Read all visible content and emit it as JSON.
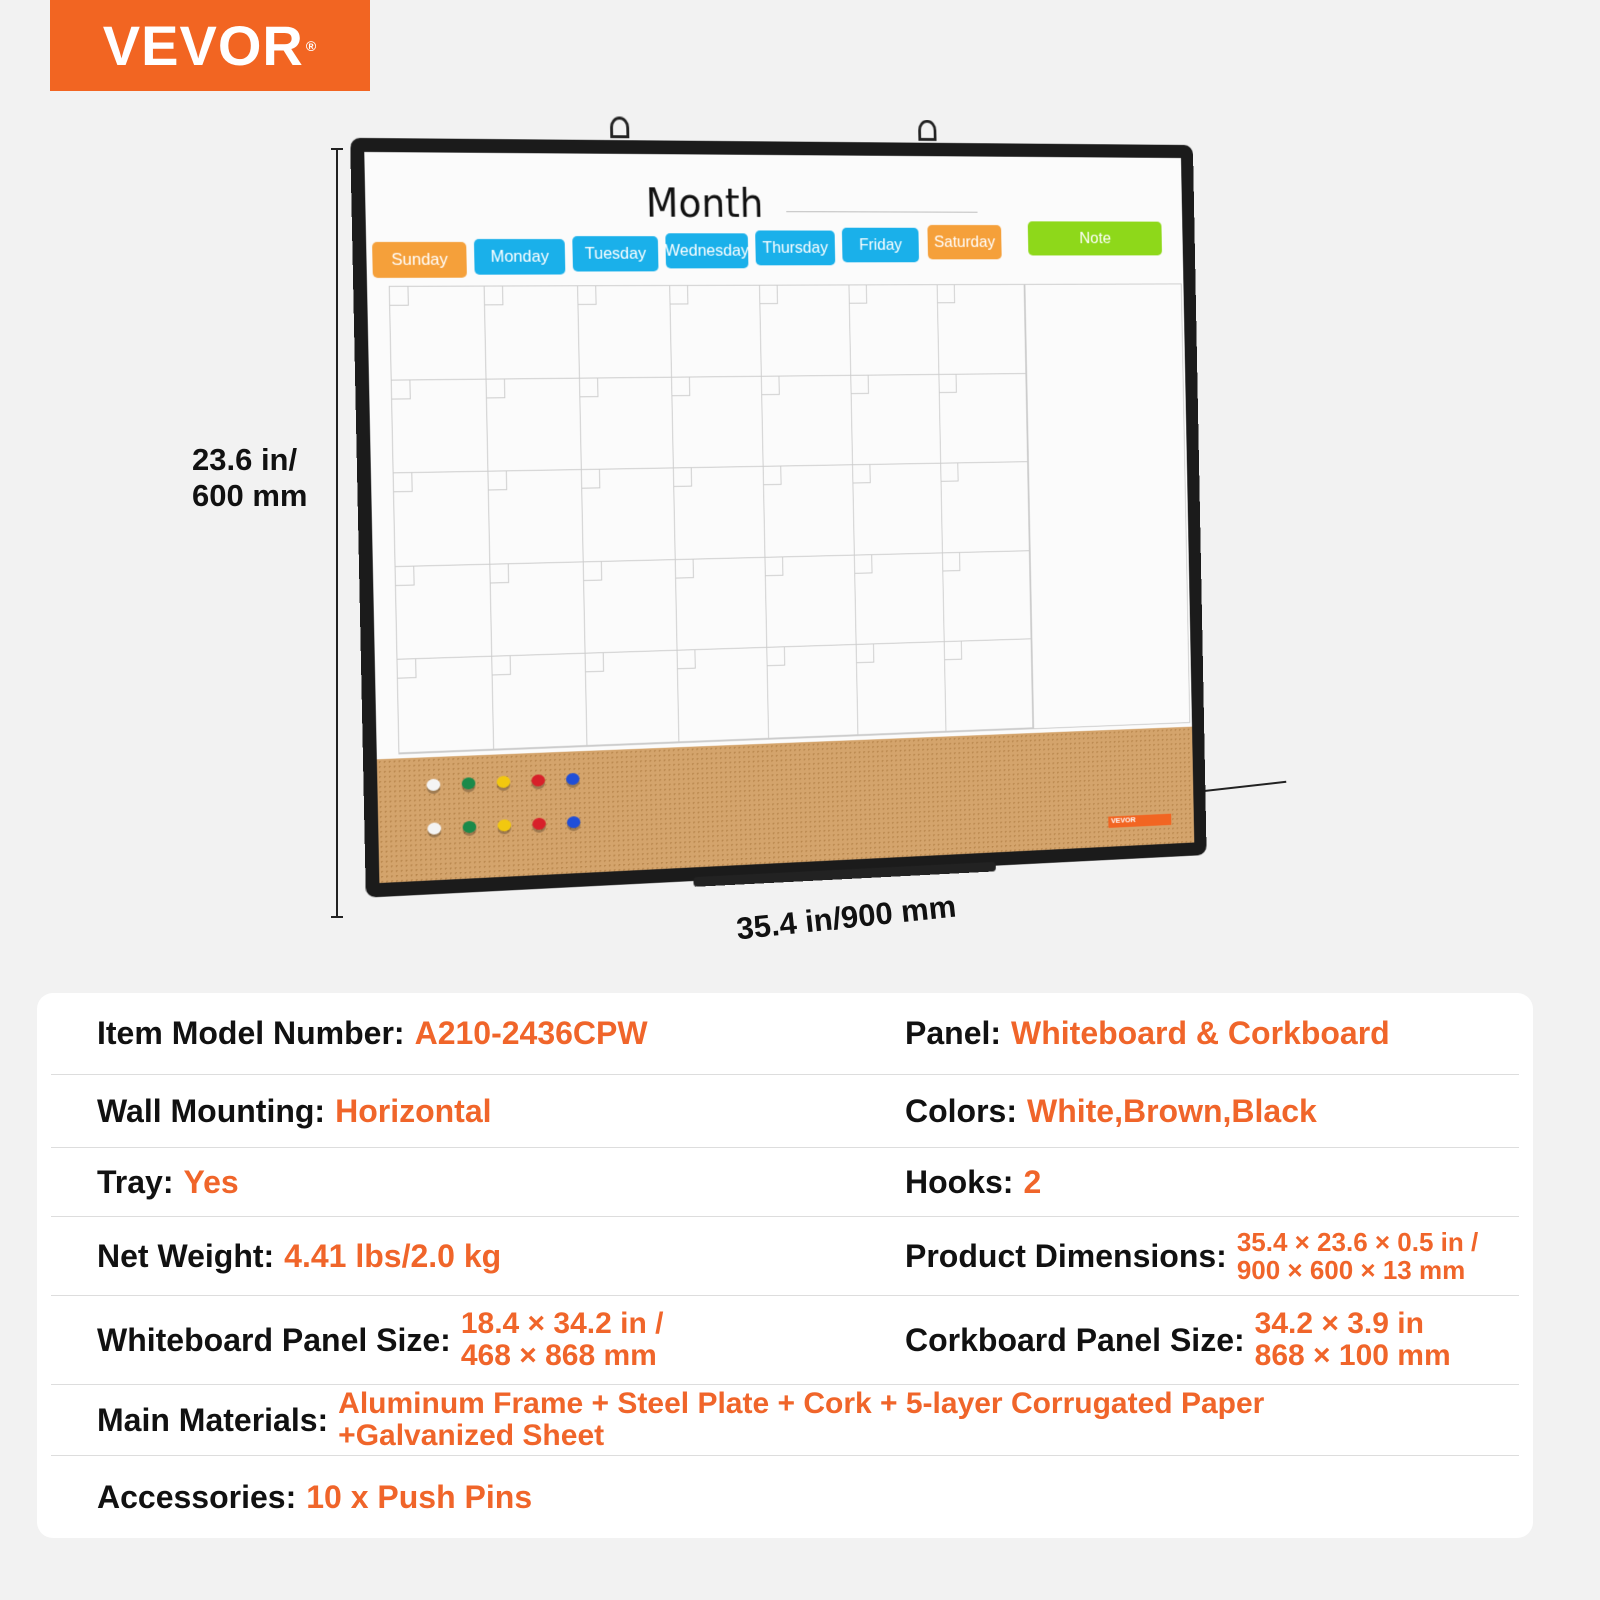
{
  "brand": {
    "logo_text": "VEVOR",
    "accent": "#f26522",
    "value_color": "#f0652a"
  },
  "dimensions": {
    "height_label_line1": "23.6 in/",
    "height_label_line2": "600 mm",
    "width_label": "35.4 in/900 mm"
  },
  "board": {
    "title": "Month",
    "days": [
      {
        "label": "Sunday",
        "color": "#f5a03a"
      },
      {
        "label": "Monday",
        "color": "#1ab0ea"
      },
      {
        "label": "Tuesday",
        "color": "#1ab0ea"
      },
      {
        "label": "Wednesday",
        "color": "#1ab0ea"
      },
      {
        "label": "Thursday",
        "color": "#1ab0ea"
      },
      {
        "label": "Friday",
        "color": "#1ab0ea"
      },
      {
        "label": "Saturday",
        "color": "#f5a03a"
      }
    ],
    "note": {
      "label": "Note",
      "color": "#8ed81a"
    },
    "cork_logo": "VEVOR",
    "pin_colors": [
      "#f4f4f4",
      "#1a8a4a",
      "#f2c80f",
      "#d8202a",
      "#1f4ed8"
    ]
  },
  "specs": [
    [
      {
        "label": "Item Model Number:",
        "value": "A210-2436CPW"
      },
      {
        "label": "Panel:",
        "value": "Whiteboard & Corkboard"
      }
    ],
    [
      {
        "label": "Wall Mounting:",
        "value": "Horizontal"
      },
      {
        "label": "Colors:",
        "value": "White,Brown,Black"
      }
    ],
    [
      {
        "label": "Tray:",
        "value": "Yes"
      },
      {
        "label": "Hooks:",
        "value": "2"
      }
    ],
    [
      {
        "label": "Net Weight:",
        "value": "4.41 lbs/2.0 kg"
      },
      {
        "label": "Product Dimensions:",
        "value_line1": "35.4 × 23.6 ×  0.5 in /",
        "value_line2": "900 × 600 × 13 mm"
      }
    ],
    [
      {
        "label": "Whiteboard Panel Size:",
        "value_line1": "18.4 × 34.2 in /",
        "value_line2": "468 × 868 mm"
      },
      {
        "label": "Corkboard Panel Size:",
        "value_line1": "34.2 × 3.9 in",
        "value_line2": "868 × 100 mm"
      }
    ],
    [
      {
        "label": "Main Materials:",
        "value_line1": "Aluminum Frame + Steel Plate + Cork + 5-layer Corrugated Paper",
        "value_line2": "+Galvanized Sheet"
      }
    ],
    [
      {
        "label": "Accessories:",
        "value": "10 x Push Pins"
      }
    ]
  ]
}
